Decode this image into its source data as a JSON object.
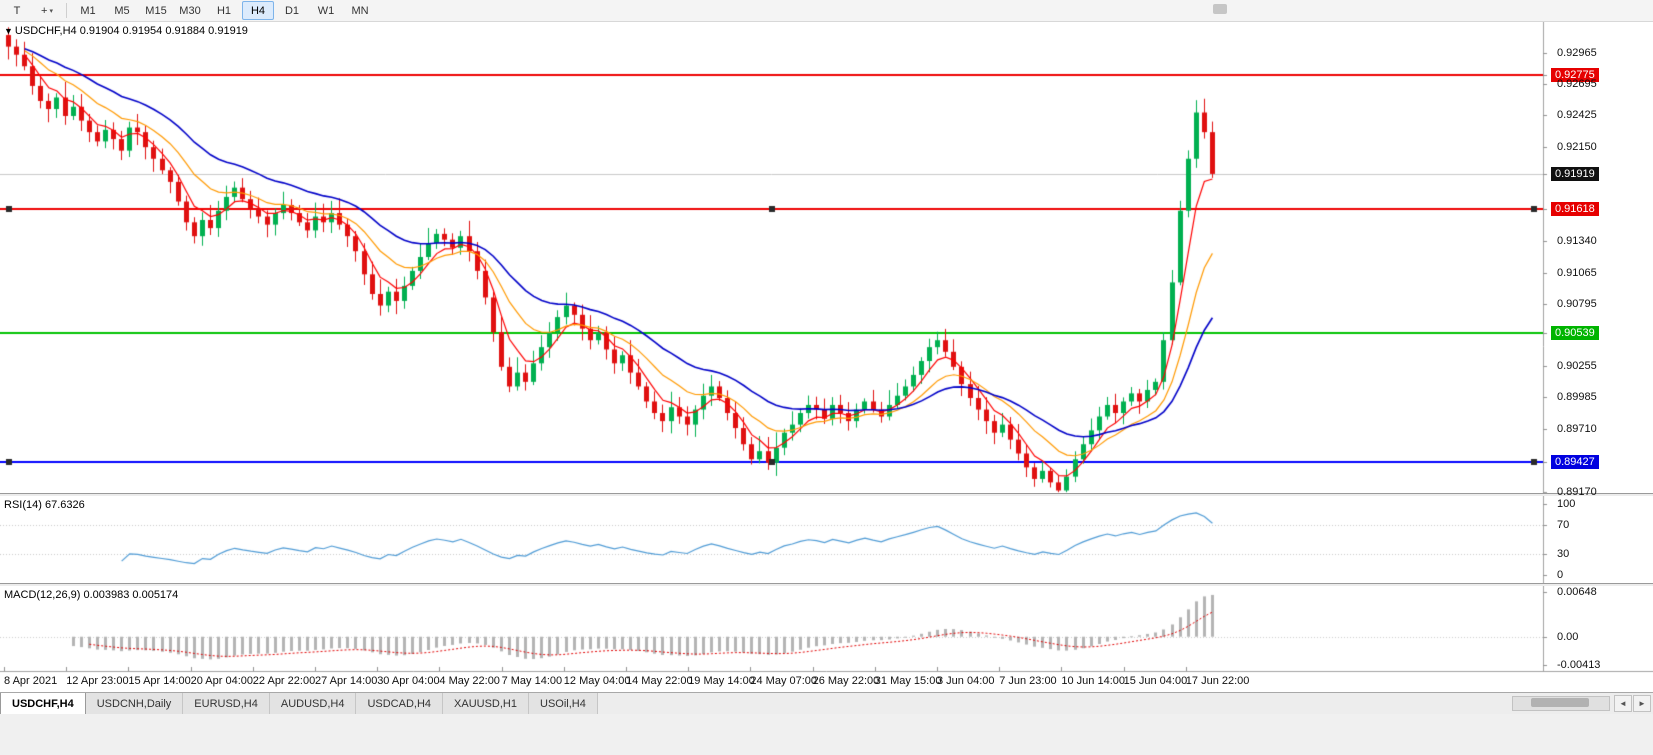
{
  "toolbar": {
    "tool_buttons": [
      {
        "name": "chart-template-button",
        "label": "T"
      },
      {
        "name": "crosshair-tool-button",
        "label": "+",
        "caret": "▾"
      }
    ],
    "timeframes": [
      {
        "label": "M1",
        "active": false
      },
      {
        "label": "M5",
        "active": false
      },
      {
        "label": "M15",
        "active": false
      },
      {
        "label": "M30",
        "active": false
      },
      {
        "label": "H1",
        "active": false
      },
      {
        "label": "H4",
        "active": true
      },
      {
        "label": "D1",
        "active": false
      },
      {
        "label": "W1",
        "active": false
      },
      {
        "label": "MN",
        "active": false
      }
    ]
  },
  "chart": {
    "symbol_marker": "▼",
    "title": "USDCHF,H4 0.91904 0.91954 0.91884 0.91919"
  },
  "chart_data": {
    "type": "candlestick",
    "symbol": "USDCHF",
    "timeframe": "H4",
    "ohlc_display": {
      "open": 0.91904,
      "high": 0.91954,
      "low": 0.91884,
      "close": 0.91919
    },
    "current_price": 0.91919,
    "first_open": 0.9312,
    "closes": [
      0.9302,
      0.9295,
      0.9285,
      0.9268,
      0.9255,
      0.9248,
      0.9258,
      0.9242,
      0.925,
      0.9238,
      0.9228,
      0.922,
      0.923,
      0.9222,
      0.9212,
      0.9232,
      0.9228,
      0.9215,
      0.9205,
      0.9195,
      0.9185,
      0.9168,
      0.915,
      0.9138,
      0.9152,
      0.9145,
      0.916,
      0.9172,
      0.918,
      0.917,
      0.9162,
      0.9155,
      0.9148,
      0.9158,
      0.9165,
      0.9158,
      0.915,
      0.9143,
      0.9155,
      0.915,
      0.9158,
      0.9148,
      0.9138,
      0.9125,
      0.9105,
      0.9088,
      0.9078,
      0.909,
      0.9082,
      0.9095,
      0.9108,
      0.912,
      0.9132,
      0.914,
      0.9135,
      0.9128,
      0.9138,
      0.9125,
      0.9108,
      0.9085,
      0.9055,
      0.9025,
      0.9008,
      0.902,
      0.9012,
      0.9028,
      0.9042,
      0.9055,
      0.9068,
      0.9078,
      0.907,
      0.9058,
      0.9048,
      0.9055,
      0.904,
      0.9028,
      0.9035,
      0.902,
      0.9008,
      0.8995,
      0.8985,
      0.8978,
      0.899,
      0.8982,
      0.8975,
      0.8988,
      0.9,
      0.9008,
      0.8998,
      0.8985,
      0.8972,
      0.8958,
      0.8945,
      0.8952,
      0.8942,
      0.8955,
      0.8968,
      0.8975,
      0.8985,
      0.8992,
      0.8988,
      0.898,
      0.8992,
      0.8985,
      0.8978,
      0.8988,
      0.8995,
      0.8988,
      0.8982,
      0.8992,
      0.9,
      0.9008,
      0.9018,
      0.903,
      0.9042,
      0.9048,
      0.9038,
      0.9025,
      0.901,
      0.8998,
      0.8988,
      0.8978,
      0.8968,
      0.8975,
      0.8962,
      0.895,
      0.8938,
      0.8928,
      0.8935,
      0.8925,
      0.8918,
      0.893,
      0.8945,
      0.8958,
      0.897,
      0.8982,
      0.8992,
      0.8985,
      0.8995,
      0.9002,
      0.8995,
      0.9005,
      0.9012,
      0.9048,
      0.9098,
      0.916,
      0.9205,
      0.9245,
      0.9228,
      0.91919
    ],
    "x_labels": [
      "8 Apr 2021",
      "12 Apr 23:00",
      "15 Apr 14:00",
      "20 Apr 04:00",
      "22 Apr 22:00",
      "27 Apr 14:00",
      "30 Apr 04:00",
      "4 May 22:00",
      "7 May 14:00",
      "12 May 04:00",
      "14 May 22:00",
      "19 May 14:00",
      "24 May 07:00",
      "26 May 22:00",
      "31 May 15:00",
      "3 Jun 04:00",
      "7 Jun 23:00",
      "10 Jun 14:00",
      "15 Jun 04:00",
      "17 Jun 22:00"
    ],
    "y_axis_ticks": [
      {
        "label": "0.92965",
        "price": 0.92965,
        "style": "plain"
      },
      {
        "label": "0.92775",
        "price": 0.92775,
        "style": "red"
      },
      {
        "label": "0.92695",
        "price": 0.92695,
        "style": "plain"
      },
      {
        "label": "0.92425",
        "price": 0.92425,
        "style": "plain"
      },
      {
        "label": "0.92150",
        "price": 0.9215,
        "style": "plain"
      },
      {
        "label": "0.91919",
        "price": 0.91919,
        "style": "black"
      },
      {
        "label": "0.91618",
        "price": 0.91618,
        "style": "red"
      },
      {
        "label": "0.91340",
        "price": 0.9134,
        "style": "plain"
      },
      {
        "label": "0.91065",
        "price": 0.91065,
        "style": "plain"
      },
      {
        "label": "0.90795",
        "price": 0.90795,
        "style": "plain"
      },
      {
        "label": "0.90539",
        "price": 0.90539,
        "style": "green"
      },
      {
        "label": "0.90255",
        "price": 0.90255,
        "style": "plain"
      },
      {
        "label": "0.89985",
        "price": 0.89985,
        "style": "plain"
      },
      {
        "label": "0.89710",
        "price": 0.8971,
        "style": "plain"
      },
      {
        "label": "0.89427",
        "price": 0.89427,
        "style": "blue"
      },
      {
        "label": "0.89170",
        "price": 0.8917,
        "style": "plain"
      }
    ],
    "levels": [
      {
        "price": 0.92775,
        "color": "red",
        "selected": false
      },
      {
        "price": 0.91618,
        "color": "red",
        "selected": true
      },
      {
        "price": 0.90539,
        "color": "green",
        "selected": false
      },
      {
        "price": 0.89427,
        "color": "blue",
        "selected": true
      }
    ],
    "indicators": {
      "rsi": {
        "label": "RSI(14) 67.6326",
        "period": 14,
        "last_value": 67.6326,
        "ticks": [
          {
            "label": "100",
            "value": 100
          },
          {
            "label": "70",
            "value": 70
          },
          {
            "label": "30",
            "value": 30
          },
          {
            "label": "0",
            "value": 0
          }
        ],
        "guide_levels": [
          70,
          30
        ]
      },
      "macd": {
        "label": "MACD(12,26,9) 0.003983 0.005174",
        "params": [
          12,
          26,
          9
        ],
        "display_values": [
          0.003983,
          0.005174
        ],
        "ticks": [
          {
            "label": "0.00648",
            "value": 0.00648
          },
          {
            "label": "0.00",
            "value": 0
          },
          {
            "label": "-0.00413",
            "value": -0.00413
          }
        ]
      }
    }
  },
  "colors": {
    "up": "#00b050",
    "down": "#e01010",
    "ma_fast": "#ff0000",
    "ma_mid": "#ff9900",
    "ma_slow": "#0000c8",
    "level_red": "#ee0000",
    "level_green": "#00c200",
    "level_blue": "#0000ff",
    "current_price_line": "#c8c8c8",
    "rsi_line": "#4f9bd5",
    "macd_hist": "#b4b4b4",
    "macd_signal": "#e00000"
  },
  "tabs": [
    {
      "label": "USDCHF,H4",
      "active": true
    },
    {
      "label": "USDCNH,Daily",
      "active": false
    },
    {
      "label": "EURUSD,H4",
      "active": false
    },
    {
      "label": "AUDUSD,H4",
      "active": false
    },
    {
      "label": "USDCAD,H4",
      "active": false
    },
    {
      "label": "XAUUSD,H1",
      "active": false
    },
    {
      "label": "USOil,H4",
      "active": false
    }
  ],
  "tab_scrollbar": {
    "left_arrow": "◄",
    "right_arrow": "►"
  }
}
